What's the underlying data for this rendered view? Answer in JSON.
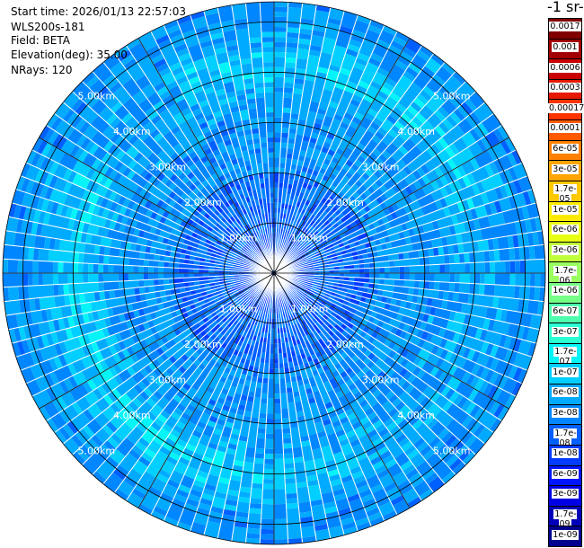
{
  "info": {
    "start_time": "Start time: 2026/01/13 22:57:03",
    "instrument": "WLS200s-181",
    "field": "Field: BETA",
    "elevation": "Elevation(deg): 35.00",
    "nrays": "NRays: 120"
  },
  "colorbar": {
    "title": "-1 sr-",
    "labels": [
      "0.0017",
      "0.001",
      "0.0006",
      "0.0003",
      "0.00017",
      "0.0001",
      "6e-05",
      "3e-05",
      "1.7e-05",
      "1e-05",
      "6e-06",
      "3e-06",
      "1.7e-06",
      "1e-06",
      "6e-07",
      "3e-07",
      "1.7e-07",
      "1e-07",
      "6e-08",
      "3e-08",
      "1.7e-08",
      "1e-08",
      "6e-09",
      "3e-09",
      "1.7e-09",
      "1e-09"
    ],
    "colors": [
      "#800000",
      "#a30000",
      "#c80000",
      "#e51800",
      "#ff3300",
      "#ff5a00",
      "#ff8000",
      "#ffa400",
      "#ffc800",
      "#ffeb00",
      "#e8ff14",
      "#c0ff3a",
      "#9aff60",
      "#74ff86",
      "#4dffac",
      "#2bffd2",
      "#05f4f8",
      "#00cfff",
      "#00aaff",
      "#0086ff",
      "#0060ff",
      "#003cff",
      "#0014ff",
      "#0000e5",
      "#0000b8",
      "#00008f"
    ]
  },
  "chart_data": {
    "type": "heatmap",
    "subtype": "polar PPI scan",
    "field": "BETA",
    "elevation_deg": 35.0,
    "n_rays": 120,
    "range_unit": "km",
    "max_range_km": 5.4,
    "range_rings_km": [
      1.0,
      2.0,
      3.0,
      4.0,
      5.0
    ],
    "range_labels": [
      "1.00km",
      "2.00km",
      "3.00km",
      "4.00km",
      "5.00km"
    ],
    "azimuth_lines_deg": [
      0,
      30,
      60,
      90,
      120,
      150,
      180,
      210,
      240,
      270,
      300,
      330
    ],
    "color_scale": "log",
    "value_range": [
      1e-09,
      0.0017
    ],
    "dominant_values": {
      "near_field_0_to_2km": "3e-08 to 1e-07",
      "far_field_2_to_5.4km": "6e-08 to 3e-07",
      "enhanced_ring_3.5_to_4.5km": "1.7e-07 to 1e-06"
    }
  }
}
